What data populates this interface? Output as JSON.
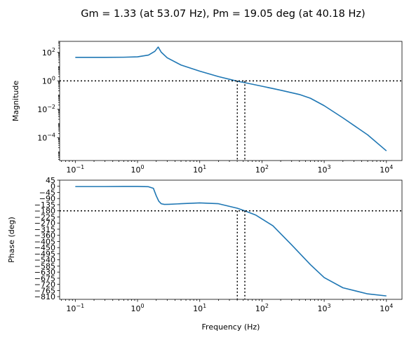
{
  "title": "Gm = 1.33 (at 53.07 Hz), Pm = 19.05 deg (at 40.18 Hz)",
  "chart_data": [
    {
      "type": "line",
      "name": "magnitude",
      "xlabel": "",
      "ylabel": "Magnitude",
      "xscale": "log",
      "yscale": "log",
      "xlim": [
        0.056,
        17800
      ],
      "ylim": [
        2.5e-06,
        600
      ],
      "grid": false,
      "x_ticks": [
        {
          "value": 0.1,
          "base": "10",
          "exp": "−1"
        },
        {
          "value": 1,
          "base": "10",
          "exp": "0"
        },
        {
          "value": 10,
          "base": "10",
          "exp": "1"
        },
        {
          "value": 100,
          "base": "10",
          "exp": "2"
        },
        {
          "value": 1000,
          "base": "10",
          "exp": "3"
        },
        {
          "value": 10000,
          "base": "10",
          "exp": "4"
        }
      ],
      "y_ticks": [
        {
          "value": 100,
          "base": "10",
          "exp": "2"
        },
        {
          "value": 1,
          "base": "10",
          "exp": "0"
        },
        {
          "value": 0.01,
          "base": "10",
          "exp": "−2"
        },
        {
          "value": 0.0001,
          "base": "10",
          "exp": "−4"
        }
      ],
      "series": [
        {
          "color": "#1f77b4",
          "x": [
            0.1,
            0.3,
            0.6,
            1.0,
            1.5,
            1.9,
            2.15,
            2.4,
            3.0,
            5.0,
            10,
            20,
            40,
            53,
            100,
            200,
            400,
            600,
            1000,
            2000,
            5000,
            10000
          ],
          "y": [
            45,
            45,
            46,
            49,
            65,
            120,
            240,
            105,
            42,
            13,
            4.8,
            2.0,
            0.95,
            0.75,
            0.42,
            0.22,
            0.11,
            0.06,
            0.018,
            0.0025,
            0.00016,
            1.2e-05
          ]
        }
      ],
      "reference_lines": {
        "horizontal": [
          1.0
        ],
        "vertical": [
          40.18,
          53.07
        ],
        "vertical_from": 1.0
      }
    },
    {
      "type": "line",
      "name": "phase",
      "xlabel": "Frequency (Hz)",
      "ylabel": "Phase (deg)",
      "xscale": "log",
      "yscale": "linear",
      "xlim": [
        0.056,
        17800
      ],
      "ylim": [
        -830,
        45
      ],
      "grid": false,
      "x_ticks": [
        {
          "value": 0.1,
          "base": "10",
          "exp": "−1"
        },
        {
          "value": 1,
          "base": "10",
          "exp": "0"
        },
        {
          "value": 10,
          "base": "10",
          "exp": "1"
        },
        {
          "value": 100,
          "base": "10",
          "exp": "2"
        },
        {
          "value": 1000,
          "base": "10",
          "exp": "3"
        },
        {
          "value": 10000,
          "base": "10",
          "exp": "4"
        }
      ],
      "y_ticks": [
        {
          "value": 45,
          "label": "45"
        },
        {
          "value": 0,
          "label": "0"
        },
        {
          "value": -45,
          "label": "−45"
        },
        {
          "value": -90,
          "label": "−90"
        },
        {
          "value": -135,
          "label": "−135"
        },
        {
          "value": -180,
          "label": "−180"
        },
        {
          "value": -225,
          "label": "−225"
        },
        {
          "value": -270,
          "label": "−270"
        },
        {
          "value": -315,
          "label": "−315"
        },
        {
          "value": -360,
          "label": "−360"
        },
        {
          "value": -405,
          "label": "−405"
        },
        {
          "value": -450,
          "label": "−450"
        },
        {
          "value": -495,
          "label": "−495"
        },
        {
          "value": -540,
          "label": "−540"
        },
        {
          "value": -585,
          "label": "−585"
        },
        {
          "value": -630,
          "label": "−630"
        },
        {
          "value": -675,
          "label": "−675"
        },
        {
          "value": -720,
          "label": "−720"
        },
        {
          "value": -765,
          "label": "−765"
        },
        {
          "value": -810,
          "label": "−810"
        }
      ],
      "series": [
        {
          "color": "#1f77b4",
          "x": [
            0.1,
            0.3,
            0.6,
            1.0,
            1.5,
            1.8,
            2.0,
            2.2,
            2.4,
            2.7,
            3.2,
            5.0,
            10,
            20,
            40,
            53,
            80,
            150,
            300,
            600,
            1000,
            2000,
            5000,
            10000
          ],
          "y": [
            -2,
            -2,
            -1,
            -1,
            -3,
            -15,
            -70,
            -110,
            -128,
            -133,
            -132,
            -128,
            -122,
            -128,
            -161,
            -180,
            -212,
            -290,
            -430,
            -575,
            -670,
            -745,
            -790,
            -805
          ]
        }
      ],
      "reference_lines": {
        "horizontal": [
          -180
        ],
        "vertical": [
          40.18,
          53.07
        ],
        "vertical_from": -180
      }
    }
  ]
}
